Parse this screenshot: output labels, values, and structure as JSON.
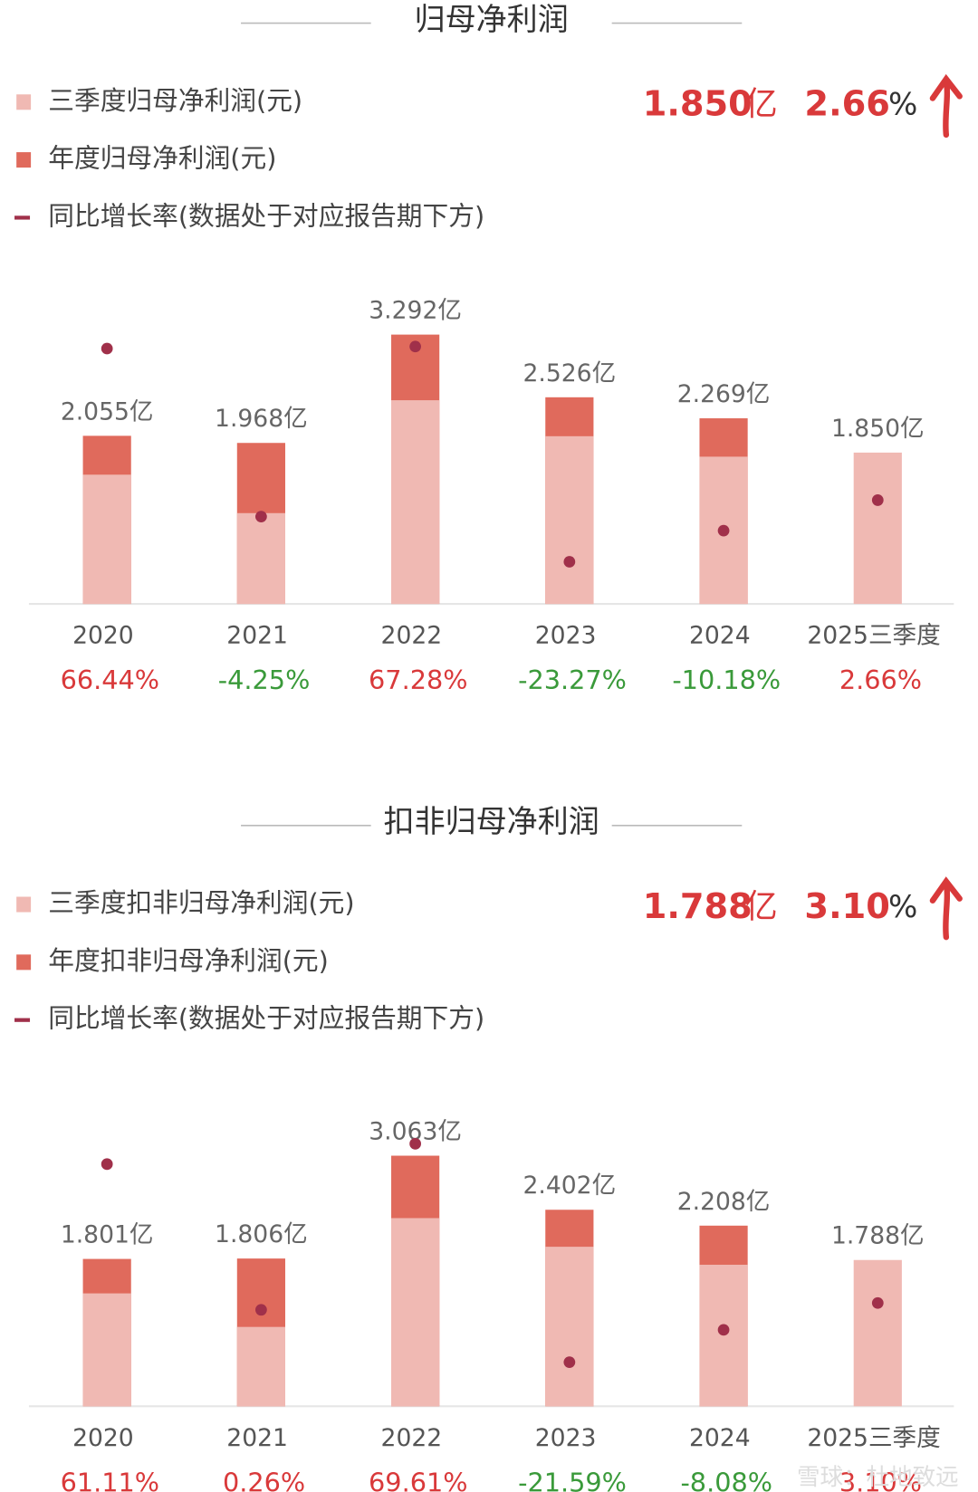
{
  "chart_data": [
    {
      "type": "bar",
      "title": "归母净利润",
      "headline_value": "1.850",
      "headline_unit": "亿",
      "headline_change": "2.66",
      "headline_change_unit": "%",
      "categories": [
        "2020",
        "2021",
        "2022",
        "2023",
        "2024",
        "2025三季度"
      ],
      "series": [
        {
          "name": "三季度归母净利润(元)",
          "color": "#f0b9b3",
          "values": [
            1.58,
            1.11,
            2.49,
            2.05,
            1.8,
            1.85
          ],
          "value_labels": [
            null,
            null,
            null,
            null,
            null,
            "1.850亿"
          ]
        },
        {
          "name": "年度归母净利润(元)",
          "color": "#e06a5c",
          "values": [
            2.055,
            1.968,
            3.292,
            2.526,
            2.269,
            null
          ],
          "value_labels": [
            "2.055亿",
            "1.968亿",
            "3.292亿",
            "2.526亿",
            "2.269亿",
            null
          ]
        },
        {
          "name": "同比增长率(数据处于对应报告期下方)",
          "type": "line",
          "axis": "y2",
          "color": "#a0304a",
          "values": [
            66.44,
            -4.25,
            67.28,
            -23.27,
            -10.18,
            2.66
          ],
          "value_labels": [
            "66.44%",
            "-4.25%",
            "67.28%",
            "-23.27%",
            "-10.18%",
            "2.66%"
          ]
        }
      ],
      "ylim": [
        0,
        3.85
      ],
      "y2lim": [
        -41,
        91.5
      ]
    },
    {
      "type": "bar",
      "title": "扣非归母净利润",
      "headline_value": "1.788",
      "headline_unit": "亿",
      "headline_change": "3.10",
      "headline_change_unit": "%",
      "categories": [
        "2020",
        "2021",
        "2022",
        "2023",
        "2024",
        "2025三季度"
      ],
      "series": [
        {
          "name": "三季度扣非归母净利润(元)",
          "color": "#f0b9b3",
          "values": [
            1.38,
            0.97,
            2.3,
            1.95,
            1.73,
            1.788
          ],
          "value_labels": [
            null,
            null,
            null,
            null,
            null,
            "1.788亿"
          ]
        },
        {
          "name": "年度扣非归母净利润(元)",
          "color": "#e06a5c",
          "values": [
            1.801,
            1.806,
            3.063,
            2.402,
            2.208,
            null
          ],
          "value_labels": [
            "1.801亿",
            "1.806亿",
            "3.063亿",
            "2.402亿",
            "2.208亿",
            null
          ]
        },
        {
          "name": "同比增长率(数据处于对应报告期下方)",
          "type": "line",
          "axis": "y2",
          "color": "#a0304a",
          "values": [
            61.11,
            0.26,
            69.61,
            -21.59,
            -8.08,
            3.1
          ],
          "value_labels": [
            "61.11%",
            "0.26%",
            "69.61%",
            "-21.59%",
            "-8.08%",
            "3.10%"
          ]
        }
      ],
      "ylim": [
        0,
        3.85
      ],
      "y2lim": [
        -40,
        91.5
      ]
    }
  ],
  "watermark": "雪球：杜地致远"
}
